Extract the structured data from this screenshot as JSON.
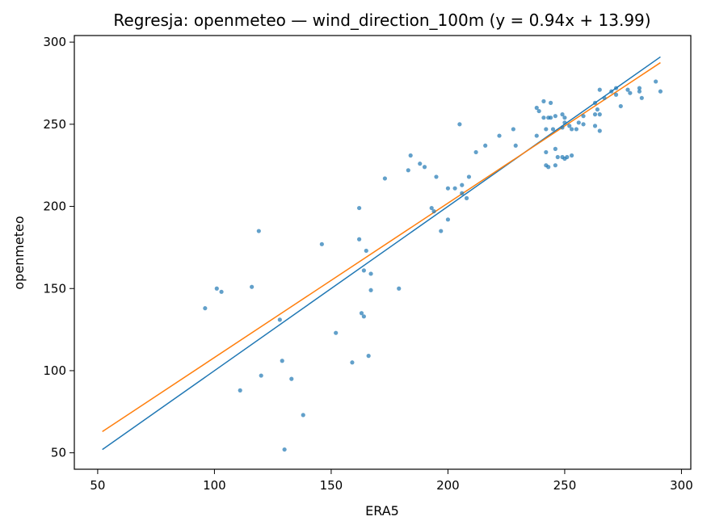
{
  "chart_data": {
    "type": "scatter",
    "title": "Regresja: openmeteo — wind_direction_100m (y = 0.94x + 13.99)",
    "xlabel": "ERA5",
    "ylabel": "openmeteo",
    "xlim": [
      40,
      304
    ],
    "ylim": [
      40,
      304
    ],
    "xticks": [
      50,
      100,
      150,
      200,
      250,
      300
    ],
    "yticks": [
      50,
      100,
      150,
      200,
      250,
      300
    ],
    "grid": false,
    "series": [
      {
        "kind": "scatter",
        "color": "#1f77b4",
        "points": [
          [
            96,
            138
          ],
          [
            101,
            150
          ],
          [
            103,
            148
          ],
          [
            111,
            88
          ],
          [
            116,
            151
          ],
          [
            119,
            185
          ],
          [
            120,
            97
          ],
          [
            128,
            131
          ],
          [
            129,
            106
          ],
          [
            130,
            52
          ],
          [
            133,
            95
          ],
          [
            138,
            73
          ],
          [
            146,
            177
          ],
          [
            152,
            123
          ],
          [
            159,
            105
          ],
          [
            162,
            180
          ],
          [
            162,
            199
          ],
          [
            163,
            135
          ],
          [
            164,
            161
          ],
          [
            164,
            133
          ],
          [
            165,
            173
          ],
          [
            166,
            109
          ],
          [
            167,
            149
          ],
          [
            167,
            159
          ],
          [
            173,
            217
          ],
          [
            179,
            150
          ],
          [
            183,
            222
          ],
          [
            184,
            231
          ],
          [
            188,
            226
          ],
          [
            190,
            224
          ],
          [
            193,
            199
          ],
          [
            194,
            197
          ],
          [
            195,
            218
          ],
          [
            197,
            185
          ],
          [
            200,
            211
          ],
          [
            200,
            192
          ],
          [
            203,
            211
          ],
          [
            205,
            250
          ],
          [
            206,
            208
          ],
          [
            206,
            213
          ],
          [
            208,
            205
          ],
          [
            209,
            218
          ],
          [
            212,
            233
          ],
          [
            216,
            237
          ],
          [
            222,
            243
          ],
          [
            228,
            247
          ],
          [
            229,
            237
          ],
          [
            238,
            243
          ],
          [
            238,
            260
          ],
          [
            239,
            258
          ],
          [
            241,
            264
          ],
          [
            241,
            254
          ],
          [
            242,
            247
          ],
          [
            242,
            233
          ],
          [
            242,
            225
          ],
          [
            243,
            254
          ],
          [
            243,
            224
          ],
          [
            244,
            254
          ],
          [
            244,
            263
          ],
          [
            245,
            247
          ],
          [
            246,
            255
          ],
          [
            246,
            235
          ],
          [
            246,
            225
          ],
          [
            247,
            230
          ],
          [
            249,
            248
          ],
          [
            249,
            230
          ],
          [
            249,
            256
          ],
          [
            250,
            251
          ],
          [
            250,
            229
          ],
          [
            250,
            254
          ],
          [
            251,
            230
          ],
          [
            252,
            249
          ],
          [
            253,
            231
          ],
          [
            253,
            247
          ],
          [
            255,
            247
          ],
          [
            256,
            251
          ],
          [
            258,
            255
          ],
          [
            258,
            250
          ],
          [
            263,
            249
          ],
          [
            263,
            256
          ],
          [
            263,
            263
          ],
          [
            264,
            259
          ],
          [
            265,
            246
          ],
          [
            265,
            256
          ],
          [
            265,
            271
          ],
          [
            267,
            266
          ],
          [
            270,
            270
          ],
          [
            272,
            268
          ],
          [
            272,
            272
          ],
          [
            274,
            261
          ],
          [
            277,
            271
          ],
          [
            278,
            269
          ],
          [
            282,
            272
          ],
          [
            282,
            270
          ],
          [
            283,
            266
          ],
          [
            289,
            276
          ],
          [
            291,
            270
          ]
        ]
      },
      {
        "kind": "line",
        "color": "#1f77b4",
        "x": [
          52,
          291
        ],
        "y": [
          52,
          291
        ]
      },
      {
        "kind": "line",
        "color": "#ff7f0e",
        "x": [
          52,
          291
        ],
        "y": [
          62.9,
          287.5
        ]
      }
    ]
  }
}
